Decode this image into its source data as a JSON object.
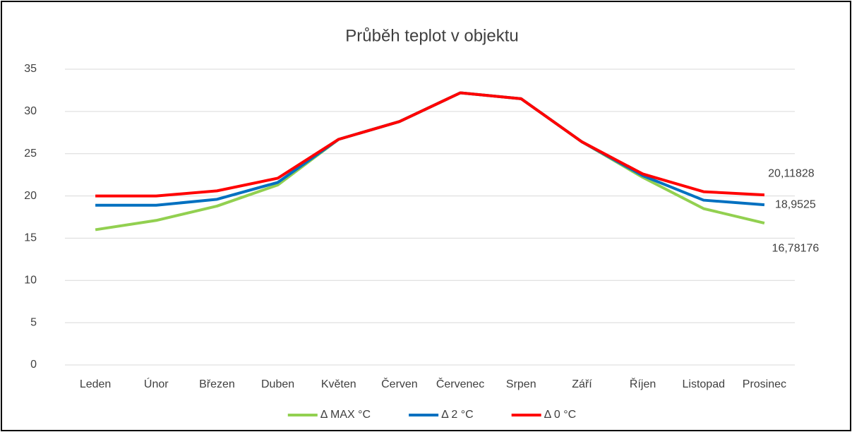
{
  "chart_data": {
    "type": "line",
    "title": "Průběh teplot v objektu",
    "categories": [
      "Leden",
      "Únor",
      "Březen",
      "Duben",
      "Květen",
      "Červen",
      "Červenec",
      "Srpen",
      "Září",
      "Říjen",
      "Listopad",
      "Prosinec"
    ],
    "series": [
      {
        "name": "Δ MAX °C",
        "color": "#92d050",
        "values": [
          16.0,
          17.1,
          18.8,
          21.3,
          26.7,
          28.8,
          32.2,
          31.5,
          26.4,
          22.2,
          18.5,
          16.78176
        ],
        "value_labels": [
          null,
          null,
          null,
          null,
          null,
          null,
          null,
          null,
          null,
          null,
          null,
          "16,78176"
        ]
      },
      {
        "name": "Δ 2 °C",
        "color": "#0070c0",
        "values": [
          18.9,
          18.9,
          19.6,
          21.6,
          26.7,
          28.8,
          32.2,
          31.5,
          26.4,
          22.4,
          19.5,
          18.9525
        ],
        "value_labels": [
          null,
          null,
          null,
          null,
          null,
          null,
          null,
          null,
          null,
          null,
          null,
          "18,9525"
        ]
      },
      {
        "name": "Δ 0 °C",
        "color": "#ff0000",
        "values": [
          20.0,
          20.0,
          20.6,
          22.1,
          26.7,
          28.8,
          32.2,
          31.5,
          26.4,
          22.6,
          20.5,
          20.11828
        ],
        "value_labels": [
          null,
          null,
          null,
          null,
          null,
          null,
          null,
          null,
          null,
          null,
          null,
          "20,11828"
        ]
      }
    ],
    "ylim": [
      0,
      35
    ],
    "yticks": [
      0,
      5,
      10,
      15,
      20,
      25,
      30,
      35
    ],
    "grid": true,
    "legend": "bottom"
  }
}
